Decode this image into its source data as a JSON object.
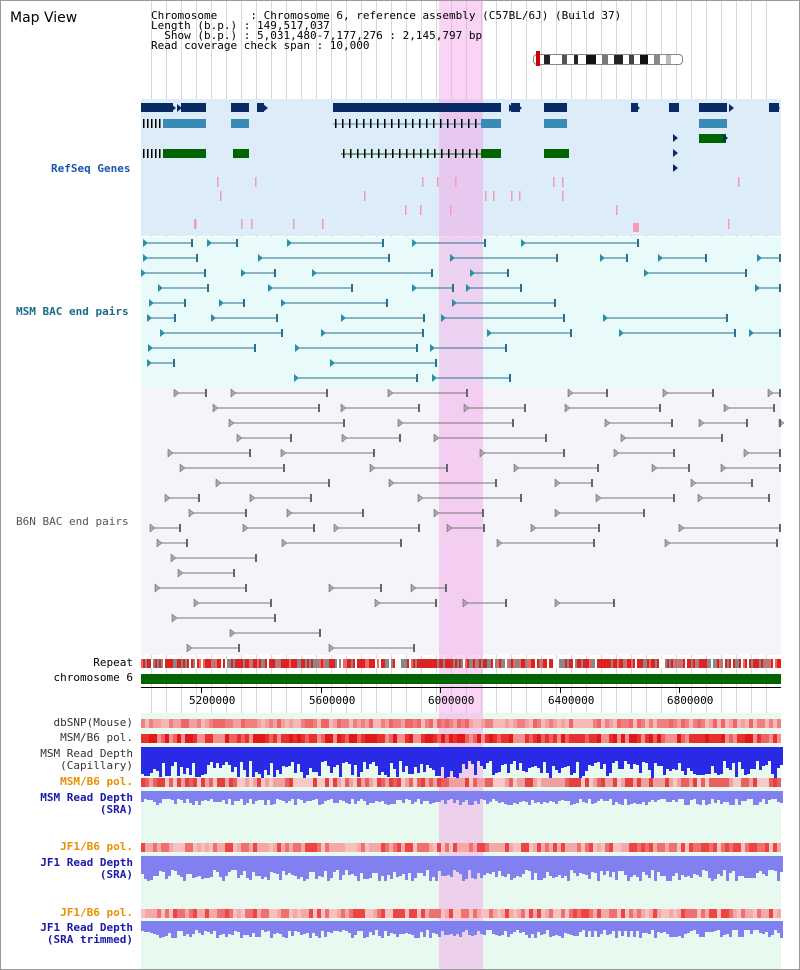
{
  "page": {
    "title": "Map View"
  },
  "header": {
    "chromosome_line": "Chromosome     : Chromosome 6, reference assembly (C57BL/6J) (Build 37)",
    "length_line": "Length (b.p.) : 149,517,037",
    "show_line": "  Show (b.p.) : 5,031,480-7,177,276 : 2,145,797 bp",
    "coverage_line": "Read coverage check span : 10,000"
  },
  "tracks": {
    "refseq": {
      "label": "RefSeq Genes",
      "color": "#1a56b0"
    },
    "msm_bac": {
      "label": "MSM BAC end pairs",
      "color": "#1a6a8a"
    },
    "b6n_bac": {
      "label": "B6N BAC end pairs",
      "color": "#555555"
    },
    "repeat": {
      "label": "Repeat"
    },
    "chromosome": {
      "label": "chromosome 6"
    },
    "dbsnp": {
      "label": "dbSNP(Mouse)"
    },
    "msm_b6_pol": {
      "label": "MSM/B6 pol."
    },
    "msm_depth_cap": {
      "label": "MSM Read Depth",
      "sub": "(Capillary)"
    },
    "msm_b6_pol2": {
      "label": "MSM/B6 pol."
    },
    "msm_depth_sra": {
      "label": "MSM Read Depth",
      "sub": "(SRA)"
    },
    "jf1_b6_pol": {
      "label": "JF1/B6 pol."
    },
    "jf1_depth_sra": {
      "label": "JF1 Read Depth",
      "sub": "(SRA)"
    },
    "jf1_b6_pol2": {
      "label": "JF1/B6 pol."
    },
    "jf1_depth_trim": {
      "label": "JF1 Read Depth",
      "sub": "(SRA trimmed)"
    }
  },
  "axis": {
    "ticks": [
      "5200000",
      "5600000",
      "6000000",
      "6400000",
      "6800000"
    ]
  },
  "colors": {
    "refseq_bg": "#dcecf8",
    "msm_bg": "#e8fafa",
    "b6n_bg": "#f4f4fa",
    "chrom": "#006400",
    "highlight": "#f5a0e6",
    "orange_label": "#e89000",
    "blue_label": "#1a1aaa"
  }
}
